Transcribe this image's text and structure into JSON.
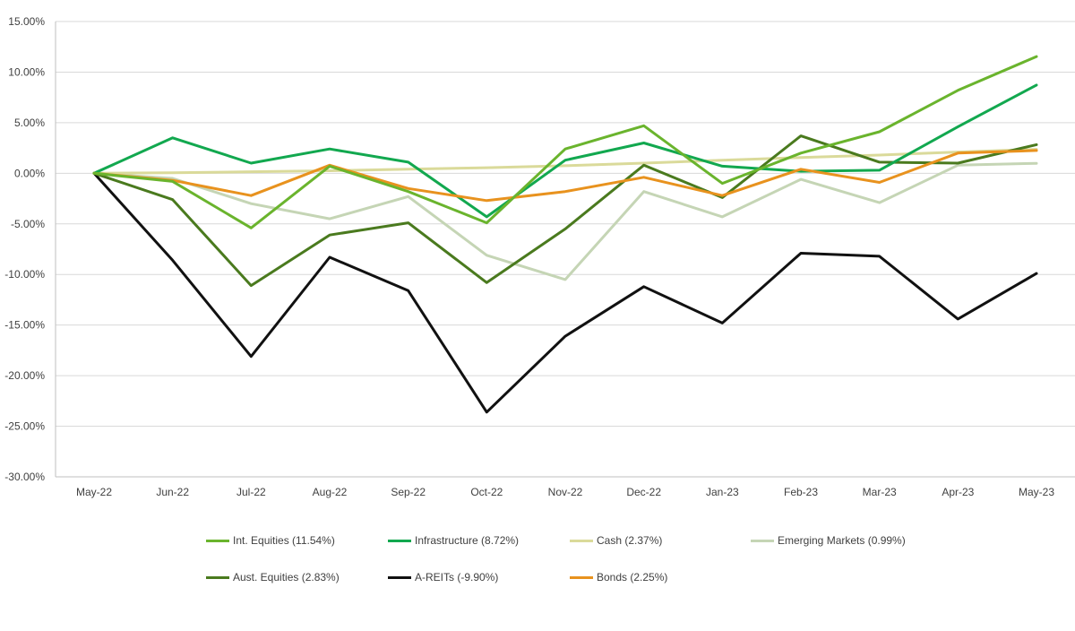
{
  "chart_data": {
    "type": "line",
    "title": "",
    "xlabel": "",
    "ylabel": "",
    "ylim": [
      -30,
      15
    ],
    "ytick_step": 5,
    "grid": true,
    "legend_position": "bottom",
    "categories": [
      "May-22",
      "Jun-22",
      "Jul-22",
      "Aug-22",
      "Sep-22",
      "Oct-22",
      "Nov-22",
      "Dec-22",
      "Jan-23",
      "Feb-23",
      "Mar-23",
      "Apr-23",
      "May-23"
    ],
    "y_tick_labels": [
      "15.00%",
      "10.00%",
      "5.00%",
      "0.00%",
      "-5.00%",
      "-10.00%",
      "-15.00%",
      "-20.00%",
      "-25.00%",
      "-30.00%"
    ],
    "series": [
      {
        "name": "Emerging Markets (0.99%)",
        "color": "#c5d5b5",
        "values": [
          0,
          -0.5,
          -3.0,
          -4.5,
          -2.3,
          -8.1,
          -10.5,
          -1.8,
          -4.3,
          -0.6,
          -2.9,
          0.8,
          0.99
        ]
      },
      {
        "name": "Cash (2.37%)",
        "color": "#dada9a",
        "values": [
          0,
          0.05,
          0.15,
          0.25,
          0.4,
          0.55,
          0.75,
          1.0,
          1.3,
          1.55,
          1.8,
          2.1,
          2.37
        ]
      },
      {
        "name": "A-REITs (-9.90%)",
        "color": "#111111",
        "values": [
          0,
          -8.6,
          -18.1,
          -8.3,
          -11.6,
          -23.6,
          -16.1,
          -11.2,
          -14.8,
          -7.9,
          -8.2,
          -14.4,
          -9.9
        ]
      },
      {
        "name": "Aust. Equities (2.83%)",
        "color": "#4a7a1e",
        "values": [
          0,
          -2.6,
          -11.1,
          -6.1,
          -4.9,
          -10.8,
          -5.5,
          0.8,
          -2.4,
          3.7,
          1.1,
          1.0,
          2.83
        ]
      },
      {
        "name": "Infrastructure (8.72%)",
        "color": "#12a84f",
        "values": [
          0,
          3.5,
          1.0,
          2.4,
          1.1,
          -4.3,
          1.3,
          3.0,
          0.7,
          0.2,
          0.3,
          4.6,
          8.72
        ]
      },
      {
        "name": "Bonds (2.25%)",
        "color": "#e8921e",
        "values": [
          0,
          -0.7,
          -2.2,
          0.8,
          -1.5,
          -2.7,
          -1.8,
          -0.4,
          -2.2,
          0.4,
          -0.9,
          2.0,
          2.25
        ]
      },
      {
        "name": "Int. Equities (11.54%)",
        "color": "#6ab42d",
        "values": [
          0,
          -0.8,
          -5.4,
          0.7,
          -1.8,
          -4.9,
          2.4,
          4.7,
          -1.0,
          2.0,
          4.1,
          8.2,
          11.54
        ]
      }
    ],
    "legend_order": [
      "Int. Equities (11.54%)",
      "Infrastructure (8.72%)",
      "Cash (2.37%)",
      "Emerging Markets (0.99%)",
      "Aust. Equities (2.83%)",
      "A-REITs (-9.90%)",
      "Bonds (2.25%)"
    ]
  }
}
